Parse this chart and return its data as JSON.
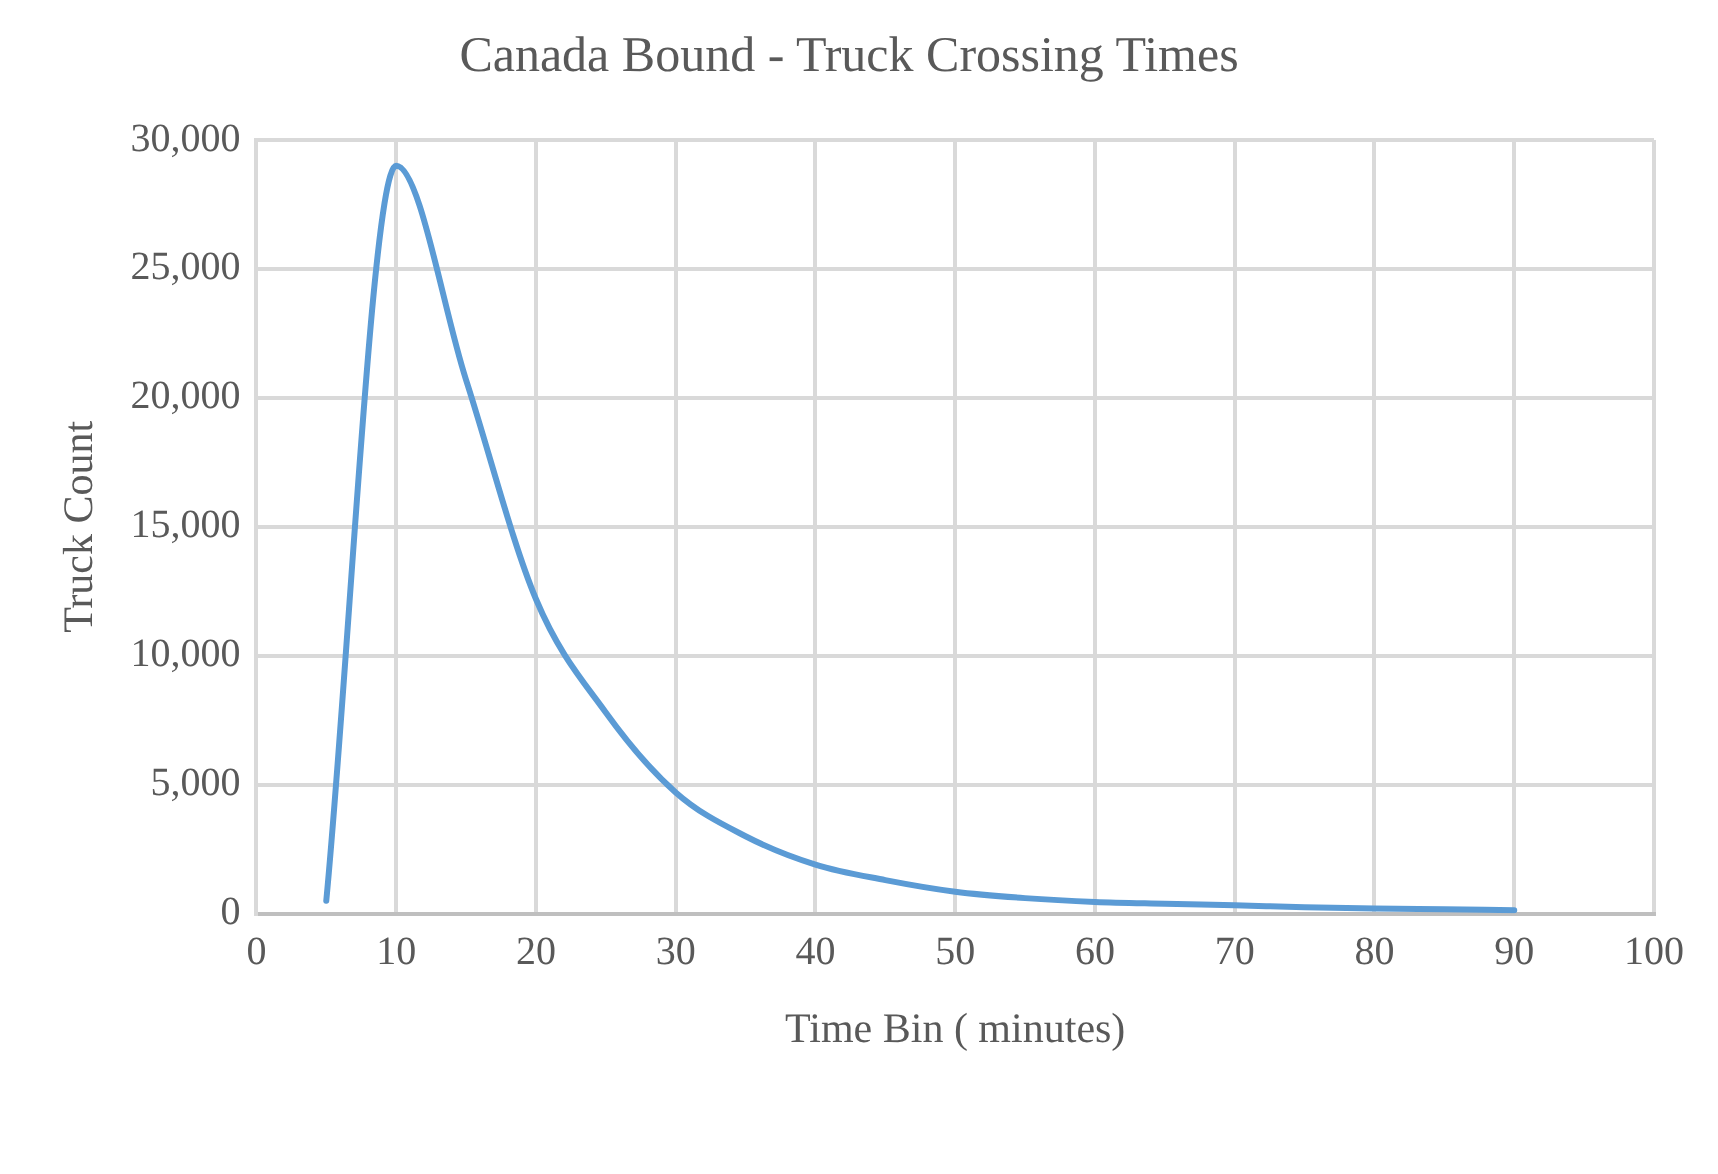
{
  "chart_data": {
    "type": "line",
    "title": "Canada Bound - Truck Crossing Times",
    "xlabel": "Time Bin ( minutes)",
    "ylabel": "Truck Count",
    "x": [
      5,
      10,
      15,
      20,
      25,
      30,
      35,
      40,
      45,
      50,
      55,
      60,
      65,
      70,
      75,
      80,
      85,
      90
    ],
    "series": [
      {
        "color": "#5b9bd5",
        "values": [
          500,
          29000,
          20700,
          12200,
          7800,
          4700,
          3000,
          1900,
          1300,
          850,
          600,
          450,
          380,
          320,
          250,
          200,
          170,
          130
        ]
      }
    ],
    "xlim": [
      0,
      100
    ],
    "xticks": [
      0,
      10,
      20,
      30,
      40,
      50,
      60,
      70,
      80,
      90,
      100
    ],
    "ylim": [
      0,
      30000
    ],
    "yticks": [
      {
        "value": 0,
        "label": "0"
      },
      {
        "value": 5000,
        "label": "5,000"
      },
      {
        "value": 10000,
        "label": "10,000"
      },
      {
        "value": 15000,
        "label": "15,000"
      },
      {
        "value": 20000,
        "label": "20,000"
      },
      {
        "value": 25000,
        "label": "25,000"
      },
      {
        "value": 30000,
        "label": "30,000"
      }
    ],
    "grid": true,
    "legend": false,
    "marker": "none",
    "line_style": "solid"
  }
}
